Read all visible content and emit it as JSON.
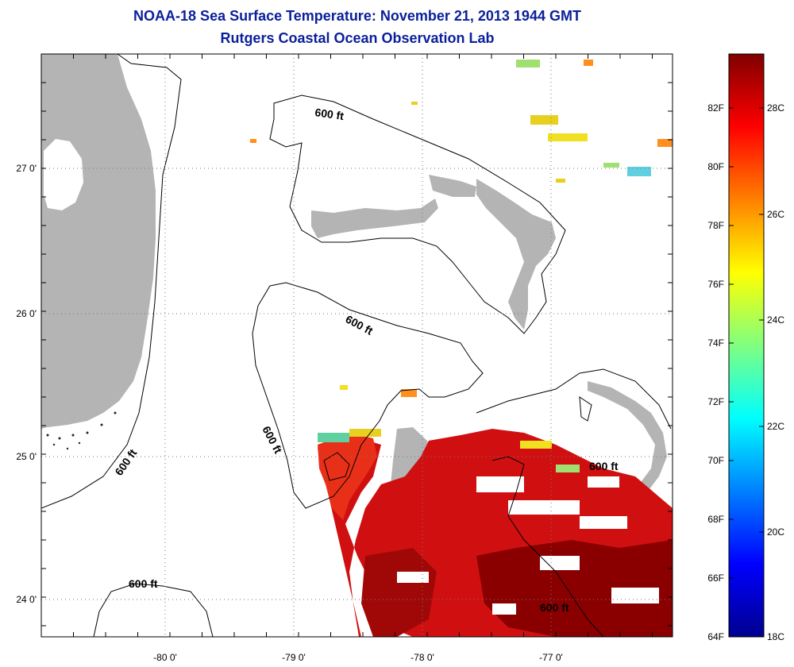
{
  "title_line1": "NOAA-18 Sea Surface Temperature:  November 21, 2013 1944 GMT",
  "title_line2": "Rutgers Coastal Ocean Observation Lab",
  "map": {
    "lon_labels": [
      "-80 0'",
      "-79 0'",
      "-78 0'",
      "-77 0'"
    ],
    "lat_labels": [
      "27 0'",
      "26 0'",
      "25 0'",
      "24 0'"
    ],
    "contour_label": "600 ft",
    "colors": {
      "land": "#b4b4b4",
      "ocean": "#ffffff",
      "grid": "#777777"
    }
  },
  "colorbar": {
    "fahrenheit_labels": [
      "82F",
      "80F",
      "78F",
      "76F",
      "74F",
      "72F",
      "70F",
      "68F",
      "66F",
      "64F"
    ],
    "celsius_labels": [
      "28C",
      "26C",
      "24C",
      "22C",
      "20C",
      "18C"
    ],
    "gradient": [
      "#00008f",
      "#0000ff",
      "#0080ff",
      "#00ffff",
      "#80ff80",
      "#ffff00",
      "#ff8000",
      "#ff0000",
      "#800000"
    ]
  }
}
